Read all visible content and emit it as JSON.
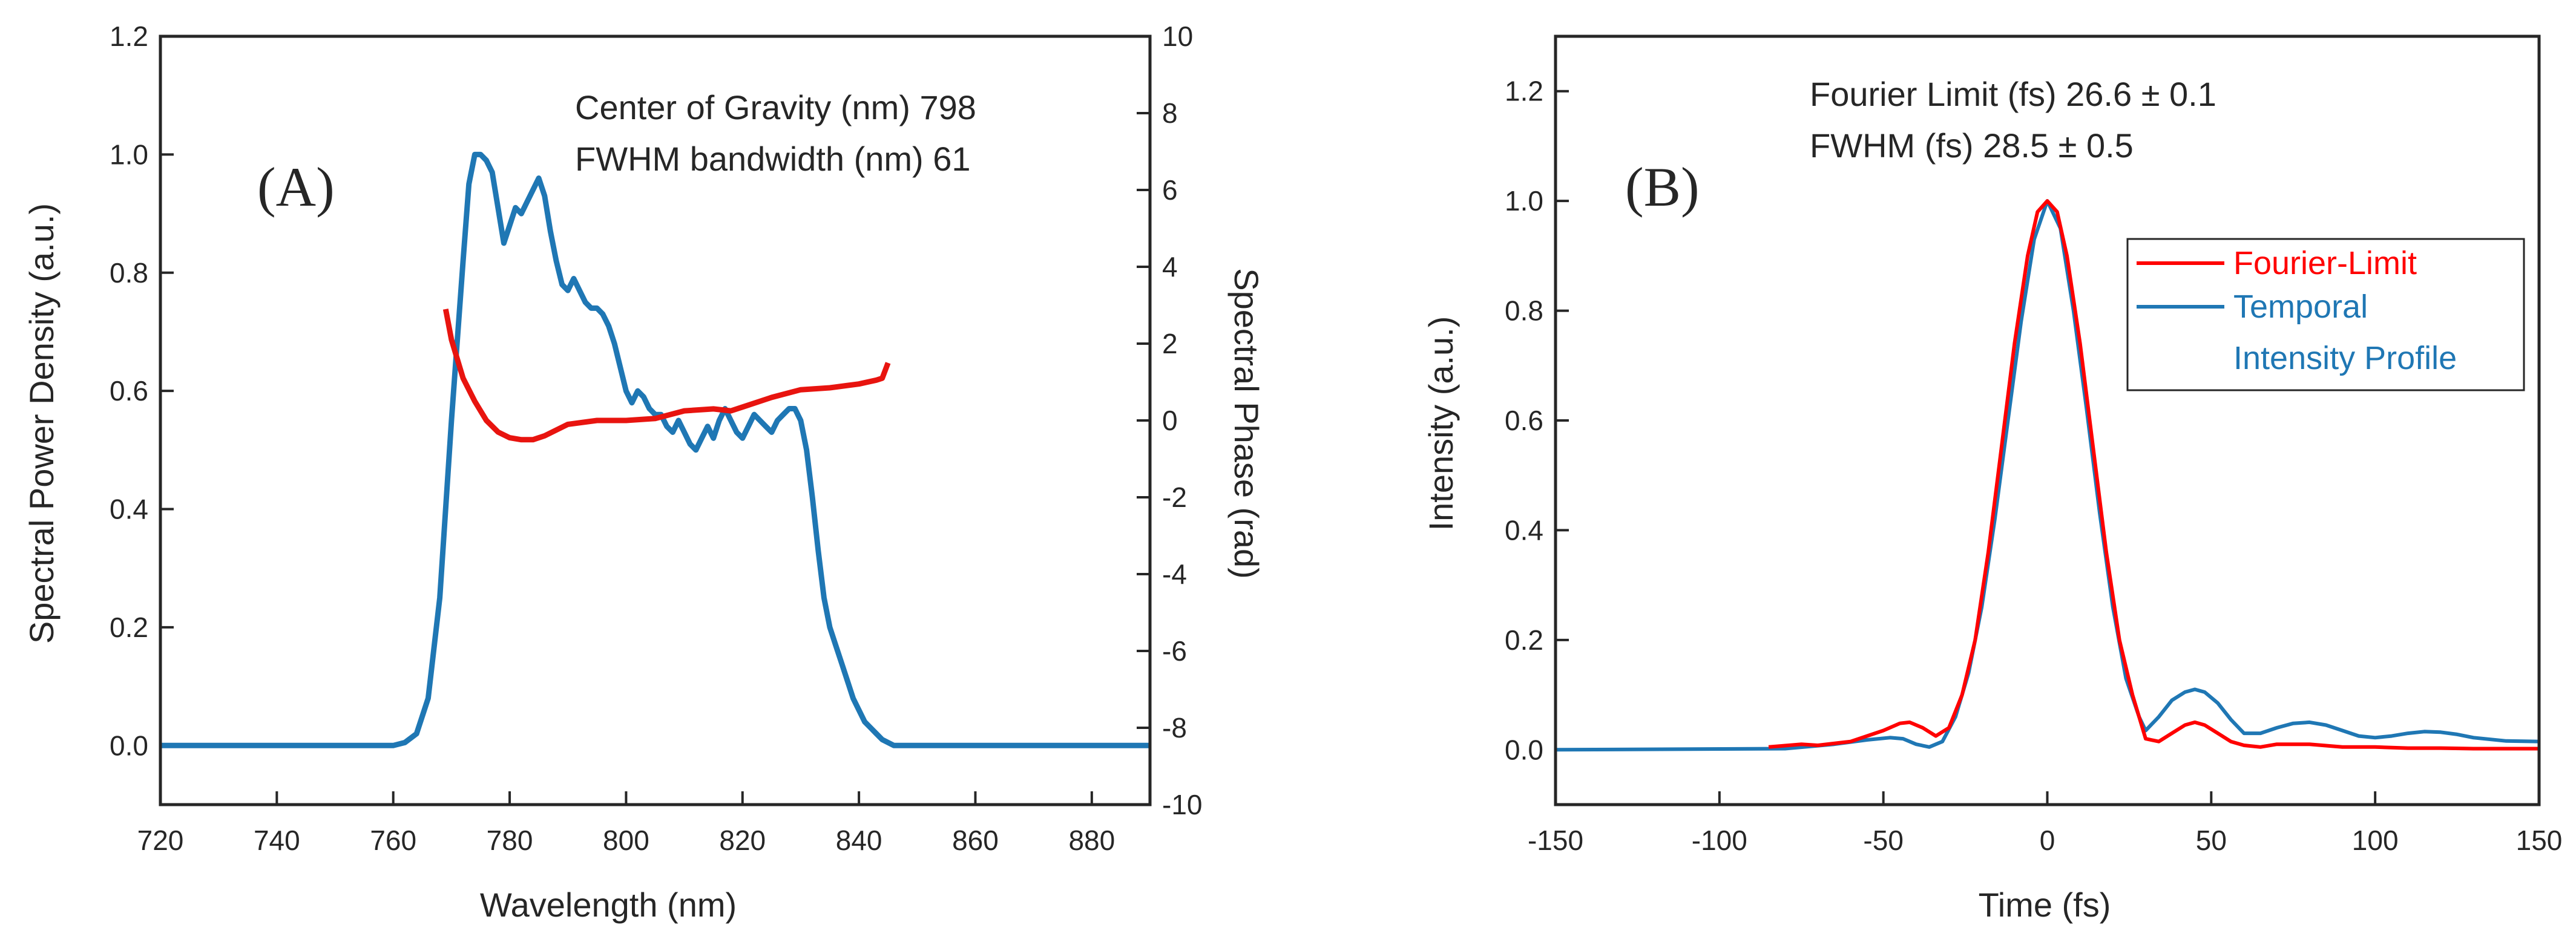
{
  "figure": {
    "panels": [
      "(A)",
      "(B)"
    ]
  },
  "colors": {
    "spectrum": "#1f77b4",
    "phase": "#e8140f",
    "fourier": "#ff0000",
    "temporal": "#1f77b4",
    "axis": "#262626"
  },
  "chart_data": [
    {
      "panel": "(A)",
      "type": "line",
      "title": "",
      "xlabel": "Wavelength (nm)",
      "ylabel": "Spectral Power Density (a.u.)",
      "y2label": "Spectral Phase (rad)",
      "xlim": [
        720,
        890
      ],
      "ylim": [
        -0.1,
        1.2
      ],
      "y2lim": [
        -10,
        10
      ],
      "xticks": [
        720,
        740,
        760,
        780,
        800,
        820,
        840,
        860,
        880
      ],
      "xtick_labels": [
        "720",
        "740",
        "760",
        "780",
        "800",
        "820",
        "840",
        "860",
        "880"
      ],
      "yticks": [
        0.0,
        0.2,
        0.4,
        0.6,
        0.8,
        1.0,
        1.2
      ],
      "ytick_labels": [
        "0.0",
        "0.2",
        "0.4",
        "0.6",
        "0.8",
        "1.0",
        "1.2"
      ],
      "y2ticks": [
        -10,
        -8,
        -6,
        -4,
        -2,
        0,
        2,
        4,
        6,
        8,
        10
      ],
      "y2tick_labels": [
        "-10",
        "-8",
        "-6",
        "-4",
        "-2",
        "0",
        "2",
        "4",
        "6",
        "8",
        "10"
      ],
      "annotations": [
        "Center of Gravity (nm) 798",
        "FWHM bandwidth (nm) 61"
      ],
      "series": [
        {
          "name": "Spectral Power Density",
          "axis": "left",
          "x": [
            720,
            760,
            762,
            764,
            766,
            768,
            770,
            772,
            773,
            774,
            775,
            776,
            777,
            778,
            779,
            780,
            781,
            782,
            783,
            784,
            785,
            786,
            787,
            788,
            789,
            790,
            791,
            792,
            793,
            794,
            795,
            796,
            797,
            798,
            799,
            800,
            801,
            802,
            803,
            804,
            805,
            806,
            807,
            808,
            809,
            810,
            811,
            812,
            813,
            814,
            815,
            816,
            817,
            818,
            819,
            820,
            821,
            822,
            823,
            824,
            825,
            826,
            827,
            828,
            829,
            830,
            831,
            832,
            833,
            834,
            835,
            836,
            837,
            838,
            839,
            840,
            841,
            842,
            843,
            844,
            845,
            846,
            890
          ],
          "y": [
            0.0,
            0.0,
            0.005,
            0.02,
            0.08,
            0.25,
            0.55,
            0.82,
            0.95,
            1.0,
            1.0,
            0.99,
            0.97,
            0.91,
            0.85,
            0.88,
            0.91,
            0.9,
            0.92,
            0.94,
            0.96,
            0.93,
            0.87,
            0.82,
            0.78,
            0.77,
            0.79,
            0.77,
            0.75,
            0.74,
            0.74,
            0.73,
            0.71,
            0.68,
            0.64,
            0.6,
            0.58,
            0.6,
            0.59,
            0.57,
            0.56,
            0.56,
            0.54,
            0.53,
            0.55,
            0.53,
            0.51,
            0.5,
            0.52,
            0.54,
            0.52,
            0.55,
            0.57,
            0.55,
            0.53,
            0.52,
            0.54,
            0.56,
            0.55,
            0.54,
            0.53,
            0.55,
            0.56,
            0.57,
            0.57,
            0.55,
            0.5,
            0.42,
            0.33,
            0.25,
            0.2,
            0.17,
            0.14,
            0.11,
            0.08,
            0.06,
            0.04,
            0.03,
            0.02,
            0.01,
            0.005,
            0.0,
            0.0
          ]
        },
        {
          "name": "Spectral Phase",
          "axis": "right",
          "x": [
            769,
            770,
            772,
            774,
            776,
            778,
            780,
            782,
            784,
            786,
            788,
            790,
            795,
            800,
            805,
            810,
            815,
            818,
            820,
            825,
            830,
            835,
            840,
            843,
            844,
            845
          ],
          "y": [
            2.9,
            2.1,
            1.1,
            0.5,
            0.0,
            -0.3,
            -0.45,
            -0.5,
            -0.5,
            -0.4,
            -0.25,
            -0.1,
            0.0,
            0.0,
            0.05,
            0.25,
            0.3,
            0.25,
            0.35,
            0.6,
            0.8,
            0.85,
            0.95,
            1.05,
            1.1,
            1.5
          ]
        }
      ]
    },
    {
      "panel": "(B)",
      "type": "line",
      "title": "",
      "xlabel": "Time (fs)",
      "ylabel": "Intensity (a.u.)",
      "xlim": [
        -150,
        150
      ],
      "ylim": [
        -0.1,
        1.3
      ],
      "xticks": [
        -150,
        -100,
        -50,
        0,
        50,
        100,
        150
      ],
      "xtick_labels": [
        "-150",
        "-100",
        "-50",
        "0",
        "50",
        "100",
        "150"
      ],
      "yticks": [
        0.0,
        0.2,
        0.4,
        0.6,
        0.8,
        1.0,
        1.2
      ],
      "ytick_labels": [
        "0.0",
        "0.2",
        "0.4",
        "0.6",
        "0.8",
        "1.0",
        "1.2"
      ],
      "annotations": [
        "Fourier Limit (fs) 26.6 ± 0.1",
        "FWHM (fs) 28.5 ± 0.5"
      ],
      "legend": {
        "position": "right",
        "entries": [
          {
            "label": "Fourier-Limit",
            "series": "Fourier-Limit"
          },
          {
            "label": "Temporal",
            "label2": "Intensity Profile",
            "series": "Temporal Intensity Profile"
          }
        ]
      },
      "series": [
        {
          "name": "Fourier-Limit",
          "x": [
            -85,
            -75,
            -70,
            -60,
            -55,
            -50,
            -45,
            -42,
            -38,
            -34,
            -30,
            -26,
            -22,
            -18,
            -14,
            -10,
            -6,
            -3,
            0,
            3,
            6,
            10,
            14,
            18,
            22,
            26,
            30,
            34,
            38,
            42,
            45,
            48,
            52,
            56,
            60,
            65,
            70,
            80,
            90,
            100,
            110,
            120,
            130,
            140,
            150
          ],
          "y": [
            0.005,
            0.01,
            0.008,
            0.015,
            0.025,
            0.035,
            0.048,
            0.05,
            0.04,
            0.025,
            0.04,
            0.1,
            0.2,
            0.36,
            0.55,
            0.74,
            0.9,
            0.98,
            1.0,
            0.98,
            0.9,
            0.74,
            0.55,
            0.36,
            0.2,
            0.1,
            0.02,
            0.015,
            0.03,
            0.045,
            0.05,
            0.045,
            0.03,
            0.015,
            0.008,
            0.005,
            0.01,
            0.01,
            0.005,
            0.005,
            0.003,
            0.003,
            0.002,
            0.002,
            0.002
          ]
        },
        {
          "name": "Temporal Intensity Profile",
          "x": [
            -150,
            -80,
            -65,
            -55,
            -48,
            -44,
            -40,
            -36,
            -32,
            -28,
            -24,
            -20,
            -16,
            -12,
            -8,
            -4,
            0,
            4,
            8,
            12,
            16,
            20,
            24,
            28,
            30,
            34,
            38,
            42,
            45,
            48,
            52,
            56,
            60,
            65,
            70,
            75,
            80,
            85,
            90,
            95,
            100,
            105,
            110,
            115,
            120,
            125,
            130,
            140,
            150
          ],
          "y": [
            0.0,
            0.002,
            0.01,
            0.018,
            0.022,
            0.02,
            0.01,
            0.005,
            0.015,
            0.06,
            0.14,
            0.26,
            0.42,
            0.6,
            0.78,
            0.93,
            1.0,
            0.95,
            0.8,
            0.62,
            0.43,
            0.26,
            0.13,
            0.06,
            0.035,
            0.06,
            0.09,
            0.105,
            0.11,
            0.105,
            0.085,
            0.055,
            0.03,
            0.03,
            0.04,
            0.048,
            0.05,
            0.045,
            0.035,
            0.025,
            0.022,
            0.025,
            0.03,
            0.033,
            0.032,
            0.028,
            0.022,
            0.016,
            0.015
          ]
        }
      ]
    }
  ]
}
